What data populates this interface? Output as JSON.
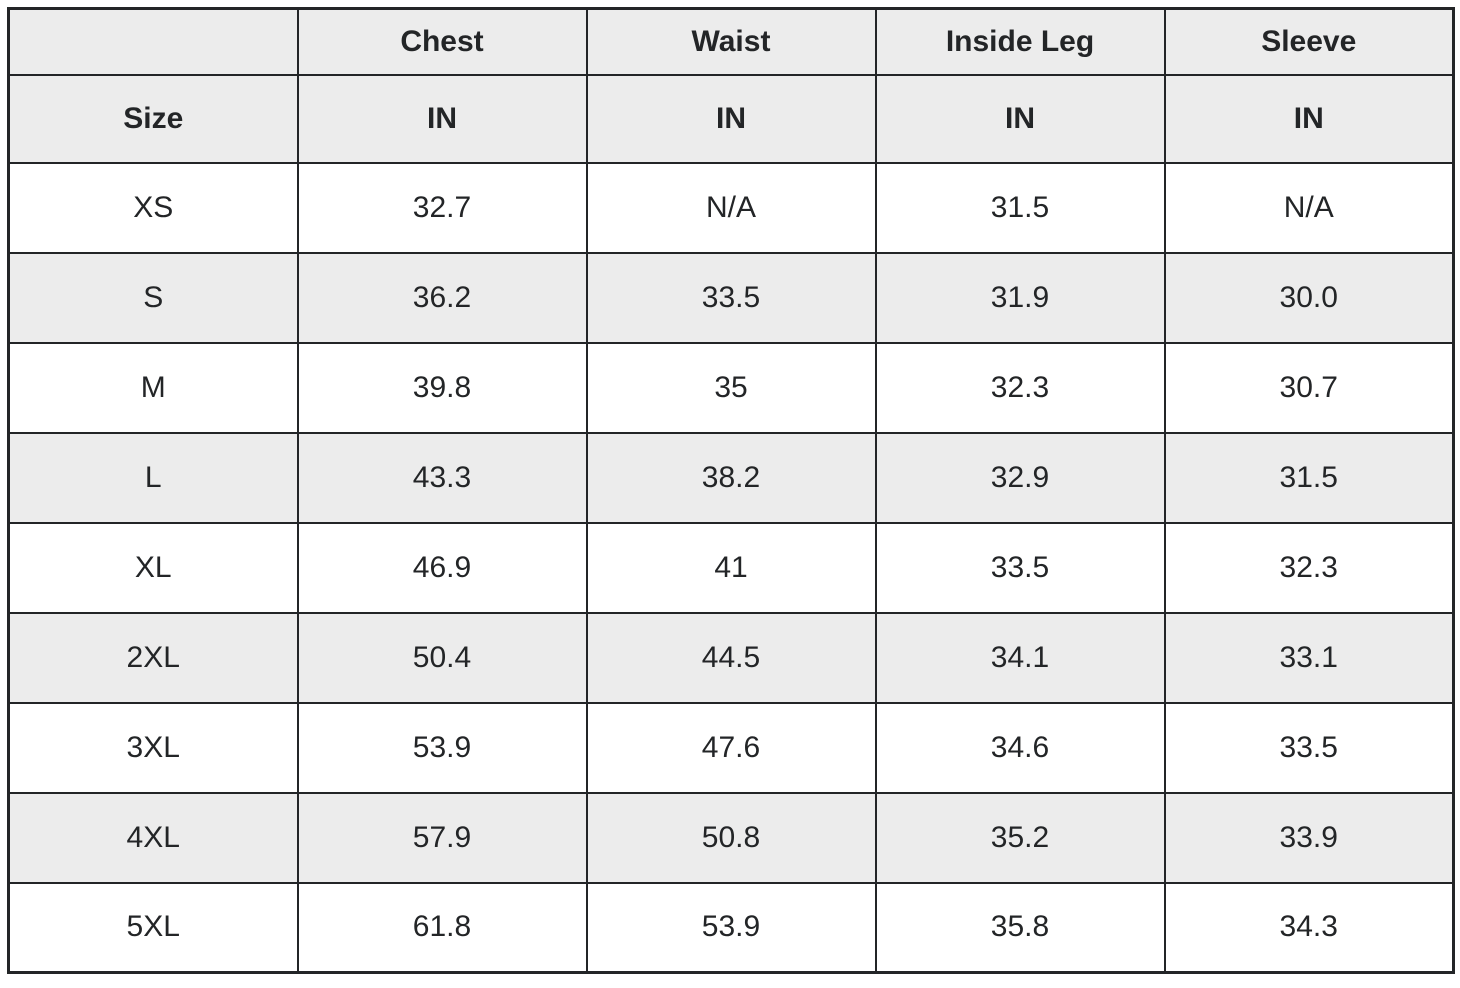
{
  "colors": {
    "border": "#232527",
    "text": "#232527",
    "stripe_background": "#ececec",
    "row_background": "#ffffff",
    "page_background": "#ffffff"
  },
  "table": {
    "header": {
      "measure_labels": [
        "",
        "Chest",
        "Waist",
        "Inside Leg",
        "Sleeve"
      ],
      "unit_labels": [
        "Size",
        "IN",
        "IN",
        "IN",
        "IN"
      ]
    },
    "rows": [
      {
        "size": "XS",
        "chest": "32.7",
        "waist": "N/A",
        "inside_leg": "31.5",
        "sleeve": "N/A"
      },
      {
        "size": "S",
        "chest": "36.2",
        "waist": "33.5",
        "inside_leg": "31.9",
        "sleeve": "30.0"
      },
      {
        "size": "M",
        "chest": "39.8",
        "waist": "35",
        "inside_leg": "32.3",
        "sleeve": "30.7"
      },
      {
        "size": "L",
        "chest": "43.3",
        "waist": "38.2",
        "inside_leg": "32.9",
        "sleeve": "31.5"
      },
      {
        "size": "XL",
        "chest": "46.9",
        "waist": "41",
        "inside_leg": "33.5",
        "sleeve": "32.3"
      },
      {
        "size": "2XL",
        "chest": "50.4",
        "waist": "44.5",
        "inside_leg": "34.1",
        "sleeve": "33.1"
      },
      {
        "size": "3XL",
        "chest": "53.9",
        "waist": "47.6",
        "inside_leg": "34.6",
        "sleeve": "33.5"
      },
      {
        "size": "4XL",
        "chest": "57.9",
        "waist": "50.8",
        "inside_leg": "35.2",
        "sleeve": "33.9"
      },
      {
        "size": "5XL",
        "chest": "61.8",
        "waist": "53.9",
        "inside_leg": "35.8",
        "sleeve": "34.3"
      }
    ]
  },
  "chart_data": {
    "type": "table",
    "columns": [
      "Size",
      "Chest IN",
      "Waist IN",
      "Inside Leg IN",
      "Sleeve IN"
    ],
    "rows": [
      [
        "XS",
        "32.7",
        "N/A",
        "31.5",
        "N/A"
      ],
      [
        "S",
        "36.2",
        "33.5",
        "31.9",
        "30.0"
      ],
      [
        "M",
        "39.8",
        "35",
        "32.3",
        "30.7"
      ],
      [
        "L",
        "43.3",
        "38.2",
        "32.9",
        "31.5"
      ],
      [
        "XL",
        "46.9",
        "41",
        "33.5",
        "32.3"
      ],
      [
        "2XL",
        "50.4",
        "44.5",
        "34.1",
        "33.1"
      ],
      [
        "3XL",
        "53.9",
        "47.6",
        "34.6",
        "33.5"
      ],
      [
        "4XL",
        "57.9",
        "50.8",
        "35.2",
        "33.9"
      ],
      [
        "5XL",
        "61.8",
        "53.9",
        "35.8",
        "34.3"
      ]
    ]
  }
}
